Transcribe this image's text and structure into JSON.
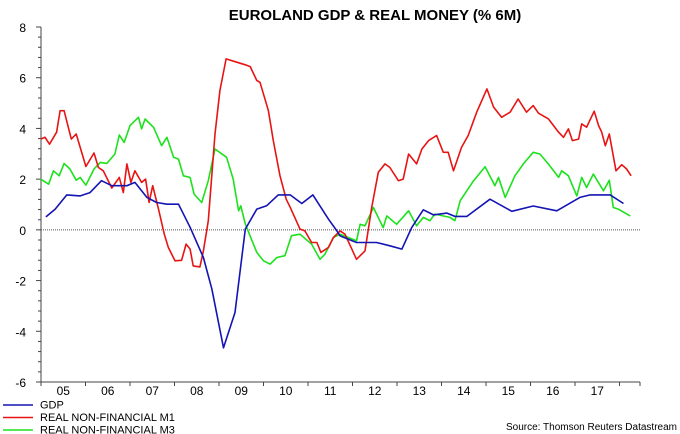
{
  "chart_data": {
    "type": "line",
    "title": "EUROLAND GDP & REAL MONEY (% 6M)",
    "source": "Source: Thomson Reuters Datastream",
    "xlabel": "",
    "ylabel": "",
    "xlim": [
      2005.0,
      2018.46
    ],
    "ylim": [
      -6,
      8
    ],
    "y_ticks": [
      8,
      6,
      4,
      2,
      0,
      -2,
      -4,
      -6
    ],
    "x_tick_labels": [
      "05",
      "06",
      "07",
      "08",
      "09",
      "10",
      "11",
      "12",
      "13",
      "14",
      "15",
      "16",
      "17"
    ],
    "zero_line": true,
    "grid": false,
    "legend_position": "bottom-left",
    "series": [
      {
        "name": "GDP",
        "color": "#1414b4",
        "points": [
          [
            2005.11,
            0.51
          ],
          [
            2005.32,
            0.82
          ],
          [
            2005.58,
            1.38
          ],
          [
            2005.88,
            1.34
          ],
          [
            2006.1,
            1.47
          ],
          [
            2006.36,
            1.94
          ],
          [
            2006.59,
            1.74
          ],
          [
            2006.93,
            1.74
          ],
          [
            2007.11,
            1.87
          ],
          [
            2007.38,
            1.28
          ],
          [
            2007.6,
            1.08
          ],
          [
            2007.83,
            1.01
          ],
          [
            2008.09,
            1.01
          ],
          [
            2008.35,
            0.1
          ],
          [
            2008.65,
            -1.09
          ],
          [
            2008.84,
            -2.34
          ],
          [
            2009.1,
            -4.65
          ],
          [
            2009.36,
            -3.26
          ],
          [
            2009.59,
            0.03
          ],
          [
            2009.85,
            0.82
          ],
          [
            2010.07,
            0.95
          ],
          [
            2010.33,
            1.38
          ],
          [
            2010.6,
            1.38
          ],
          [
            2010.86,
            1.04
          ],
          [
            2011.11,
            1.38
          ],
          [
            2011.46,
            0.42
          ],
          [
            2011.65,
            -0.04
          ],
          [
            2011.72,
            -0.24
          ],
          [
            2012.09,
            -0.5
          ],
          [
            2012.54,
            -0.5
          ],
          [
            2012.84,
            -0.63
          ],
          [
            2013.11,
            -0.76
          ],
          [
            2013.33,
            0.09
          ],
          [
            2013.59,
            0.79
          ],
          [
            2013.82,
            0.59
          ],
          [
            2014.12,
            0.66
          ],
          [
            2014.3,
            0.53
          ],
          [
            2014.57,
            0.53
          ],
          [
            2015.09,
            1.21
          ],
          [
            2015.58,
            0.73
          ],
          [
            2016.06,
            0.94
          ],
          [
            2016.59,
            0.75
          ],
          [
            2017.11,
            1.28
          ],
          [
            2017.34,
            1.38
          ],
          [
            2017.79,
            1.38
          ],
          [
            2018.09,
            1.04
          ]
        ]
      },
      {
        "name": "REAL NON-FINANCIAL M1",
        "color": "#e81414",
        "points": [
          [
            2004.99,
            3.58
          ],
          [
            2005.09,
            3.65
          ],
          [
            2005.19,
            3.38
          ],
          [
            2005.35,
            3.85
          ],
          [
            2005.43,
            4.7
          ],
          [
            2005.52,
            4.7
          ],
          [
            2005.68,
            3.58
          ],
          [
            2005.79,
            3.78
          ],
          [
            2006.01,
            2.5
          ],
          [
            2006.19,
            3.03
          ],
          [
            2006.29,
            2.46
          ],
          [
            2006.4,
            2.33
          ],
          [
            2006.59,
            1.65
          ],
          [
            2006.76,
            2.07
          ],
          [
            2006.85,
            1.47
          ],
          [
            2006.93,
            2.6
          ],
          [
            2007.02,
            1.87
          ],
          [
            2007.11,
            2.33
          ],
          [
            2007.26,
            1.87
          ],
          [
            2007.35,
            2.0
          ],
          [
            2007.43,
            1.08
          ],
          [
            2007.51,
            1.74
          ],
          [
            2007.64,
            0.82
          ],
          [
            2007.77,
            -0.17
          ],
          [
            2007.86,
            -0.69
          ],
          [
            2008.01,
            -1.22
          ],
          [
            2008.16,
            -1.2
          ],
          [
            2008.26,
            -0.56
          ],
          [
            2008.35,
            -0.76
          ],
          [
            2008.42,
            -1.42
          ],
          [
            2008.57,
            -1.46
          ],
          [
            2008.65,
            -0.83
          ],
          [
            2008.76,
            0.36
          ],
          [
            2008.91,
            3.78
          ],
          [
            2009.02,
            5.49
          ],
          [
            2009.16,
            6.74
          ],
          [
            2009.4,
            6.61
          ],
          [
            2009.59,
            6.51
          ],
          [
            2009.7,
            6.44
          ],
          [
            2009.85,
            5.89
          ],
          [
            2009.92,
            5.82
          ],
          [
            2010.11,
            4.7
          ],
          [
            2010.22,
            3.52
          ],
          [
            2010.37,
            2.13
          ],
          [
            2010.51,
            1.21
          ],
          [
            2010.6,
            0.89
          ],
          [
            2010.82,
            0.03
          ],
          [
            2010.93,
            -0.04
          ],
          [
            2011.08,
            -0.5
          ],
          [
            2011.2,
            -0.5
          ],
          [
            2011.29,
            -0.89
          ],
          [
            2011.46,
            -0.69
          ],
          [
            2011.57,
            -0.3
          ],
          [
            2011.72,
            -0.04
          ],
          [
            2011.83,
            -0.17
          ],
          [
            2012.09,
            -1.16
          ],
          [
            2012.28,
            -0.83
          ],
          [
            2012.43,
            0.88
          ],
          [
            2012.58,
            2.27
          ],
          [
            2012.73,
            2.6
          ],
          [
            2012.84,
            2.46
          ],
          [
            2013.03,
            1.94
          ],
          [
            2013.14,
            2.0
          ],
          [
            2013.26,
            2.99
          ],
          [
            2013.44,
            2.6
          ],
          [
            2013.56,
            3.19
          ],
          [
            2013.71,
            3.52
          ],
          [
            2013.89,
            3.72
          ],
          [
            2014.04,
            3.06
          ],
          [
            2014.15,
            3.06
          ],
          [
            2014.27,
            2.33
          ],
          [
            2014.45,
            3.25
          ],
          [
            2014.6,
            3.72
          ],
          [
            2014.79,
            4.64
          ],
          [
            2015.02,
            5.56
          ],
          [
            2015.17,
            4.84
          ],
          [
            2015.35,
            4.44
          ],
          [
            2015.54,
            4.64
          ],
          [
            2015.72,
            5.16
          ],
          [
            2015.91,
            4.64
          ],
          [
            2016.06,
            4.9
          ],
          [
            2016.18,
            4.6
          ],
          [
            2016.4,
            4.38
          ],
          [
            2016.63,
            3.85
          ],
          [
            2016.74,
            3.65
          ],
          [
            2016.85,
            3.98
          ],
          [
            2016.94,
            3.52
          ],
          [
            2017.08,
            3.58
          ],
          [
            2017.15,
            4.18
          ],
          [
            2017.26,
            4.05
          ],
          [
            2017.43,
            4.68
          ],
          [
            2017.53,
            4.11
          ],
          [
            2017.6,
            3.85
          ],
          [
            2017.68,
            3.32
          ],
          [
            2017.77,
            3.78
          ],
          [
            2017.92,
            2.33
          ],
          [
            2018.05,
            2.57
          ],
          [
            2018.16,
            2.4
          ],
          [
            2018.26,
            2.13
          ]
        ]
      },
      {
        "name": "REAL NON-FINANCIAL M3",
        "color": "#1ee11e",
        "points": [
          [
            2004.99,
            2.0
          ],
          [
            2005.17,
            1.8
          ],
          [
            2005.28,
            2.33
          ],
          [
            2005.41,
            2.13
          ],
          [
            2005.52,
            2.62
          ],
          [
            2005.65,
            2.4
          ],
          [
            2005.79,
            1.96
          ],
          [
            2005.88,
            2.07
          ],
          [
            2006.01,
            1.76
          ],
          [
            2006.19,
            2.4
          ],
          [
            2006.33,
            2.66
          ],
          [
            2006.48,
            2.62
          ],
          [
            2006.66,
            2.99
          ],
          [
            2006.76,
            3.74
          ],
          [
            2006.87,
            3.45
          ],
          [
            2007.0,
            4.11
          ],
          [
            2007.19,
            4.44
          ],
          [
            2007.26,
            3.98
          ],
          [
            2007.34,
            4.37
          ],
          [
            2007.53,
            4.04
          ],
          [
            2007.71,
            3.32
          ],
          [
            2007.83,
            3.65
          ],
          [
            2007.98,
            2.86
          ],
          [
            2008.09,
            2.79
          ],
          [
            2008.2,
            2.13
          ],
          [
            2008.35,
            2.07
          ],
          [
            2008.44,
            1.41
          ],
          [
            2008.61,
            1.08
          ],
          [
            2008.76,
            1.94
          ],
          [
            2008.91,
            3.19
          ],
          [
            2009.17,
            2.86
          ],
          [
            2009.32,
            2.0
          ],
          [
            2009.44,
            0.75
          ],
          [
            2009.49,
            0.95
          ],
          [
            2009.59,
            0.23
          ],
          [
            2009.85,
            -0.89
          ],
          [
            2010.0,
            -1.22
          ],
          [
            2010.15,
            -1.35
          ],
          [
            2010.3,
            -1.09
          ],
          [
            2010.48,
            -1.02
          ],
          [
            2010.63,
            -0.23
          ],
          [
            2010.82,
            -0.17
          ],
          [
            2011.08,
            -0.56
          ],
          [
            2011.27,
            -1.16
          ],
          [
            2011.38,
            -0.96
          ],
          [
            2011.57,
            -0.3
          ],
          [
            2011.72,
            -0.17
          ],
          [
            2012.09,
            -0.43
          ],
          [
            2012.17,
            0.22
          ],
          [
            2012.28,
            0.16
          ],
          [
            2012.47,
            0.88
          ],
          [
            2012.69,
            0.09
          ],
          [
            2012.77,
            0.55
          ],
          [
            2012.99,
            0.22
          ],
          [
            2013.26,
            0.75
          ],
          [
            2013.44,
            0.16
          ],
          [
            2013.59,
            0.49
          ],
          [
            2013.74,
            0.36
          ],
          [
            2013.85,
            0.62
          ],
          [
            2014.19,
            0.49
          ],
          [
            2014.3,
            0.36
          ],
          [
            2014.42,
            1.15
          ],
          [
            2014.72,
            1.94
          ],
          [
            2014.98,
            2.49
          ],
          [
            2015.2,
            1.74
          ],
          [
            2015.28,
            2.07
          ],
          [
            2015.43,
            1.28
          ],
          [
            2015.65,
            2.13
          ],
          [
            2015.84,
            2.6
          ],
          [
            2016.06,
            3.06
          ],
          [
            2016.21,
            2.99
          ],
          [
            2016.4,
            2.6
          ],
          [
            2016.63,
            2.07
          ],
          [
            2016.7,
            2.33
          ],
          [
            2016.85,
            2.13
          ],
          [
            2017.04,
            1.34
          ],
          [
            2017.15,
            2.07
          ],
          [
            2017.26,
            1.67
          ],
          [
            2017.41,
            2.2
          ],
          [
            2017.64,
            1.54
          ],
          [
            2017.77,
            1.96
          ],
          [
            2017.86,
            0.88
          ],
          [
            2017.97,
            0.82
          ],
          [
            2018.24,
            0.55
          ]
        ]
      }
    ]
  }
}
